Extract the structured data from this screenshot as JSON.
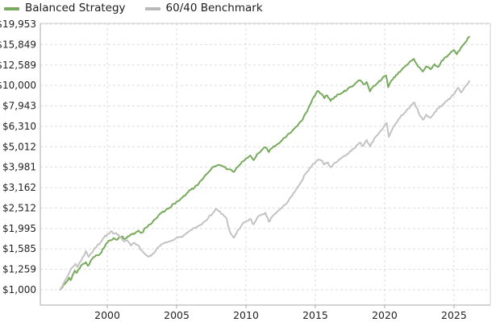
{
  "legend": {
    "items": [
      {
        "label": "Balanced Strategy",
        "color": "#77aa5c"
      },
      {
        "label": "60/40 Benchmark",
        "color": "#b9b9b9"
      }
    ]
  },
  "colors": {
    "balanced": "#77aa5c",
    "benchmark": "#c3c3c3",
    "grid": "#dddddd",
    "axis_main": "#a9a9a9",
    "axis_light": "#cfcfcf",
    "tick_text": "#222222"
  },
  "chart_data": {
    "type": "line",
    "title": "",
    "xlabel": "",
    "ylabel": "",
    "grid": true,
    "legend_position": "top-left",
    "y_scale": "log",
    "x_range": [
      1995.17,
      2027.62
    ],
    "y_log_range": [
      2.925,
      4.304
    ],
    "x_axis": {
      "ticks": [
        2000,
        2005,
        2010,
        2015,
        2020,
        2025
      ],
      "tick_labels": [
        "2000",
        "2005",
        "2010",
        "2015",
        "2020",
        "2025"
      ]
    },
    "y_axis": {
      "tick_values": [
        19953,
        15849,
        12589,
        10000,
        7943,
        6310,
        5012,
        3981,
        3162,
        2512,
        1995,
        1585,
        1259,
        1000
      ],
      "tick_labels": [
        "$19,953",
        "$15,849",
        "$12,589",
        "$10,000",
        "$7,943",
        "$6,310",
        "$5,012",
        "$3,981",
        "$3,162",
        "$2,512",
        "$1,995",
        "$1,585",
        "$1,259",
        "$1,000"
      ]
    },
    "series": [
      {
        "name": "Balanced Strategy",
        "color": "#77aa5c",
        "points": [
          [
            1996.6,
            1000
          ],
          [
            1996.75,
            1025
          ],
          [
            1996.9,
            1060
          ],
          [
            1997.1,
            1100
          ],
          [
            1997.25,
            1145
          ],
          [
            1997.35,
            1115
          ],
          [
            1997.5,
            1185
          ],
          [
            1997.65,
            1240
          ],
          [
            1997.8,
            1210
          ],
          [
            1998.0,
            1270
          ],
          [
            1998.2,
            1330
          ],
          [
            1998.45,
            1365
          ],
          [
            1998.6,
            1310
          ],
          [
            1998.8,
            1385
          ],
          [
            1999.0,
            1445
          ],
          [
            1999.25,
            1475
          ],
          [
            1999.5,
            1505
          ],
          [
            1999.75,
            1600
          ],
          [
            2000.0,
            1700
          ],
          [
            2000.2,
            1745
          ],
          [
            2000.45,
            1790
          ],
          [
            2000.65,
            1755
          ],
          [
            2000.9,
            1800
          ],
          [
            2001.1,
            1825
          ],
          [
            2001.25,
            1770
          ],
          [
            2001.5,
            1830
          ],
          [
            2001.75,
            1865
          ],
          [
            2002.0,
            1895
          ],
          [
            2002.25,
            1950
          ],
          [
            2002.5,
            1900
          ],
          [
            2002.75,
            2010
          ],
          [
            2003.0,
            2080
          ],
          [
            2003.3,
            2165
          ],
          [
            2003.6,
            2260
          ],
          [
            2003.9,
            2380
          ],
          [
            2004.2,
            2450
          ],
          [
            2004.5,
            2520
          ],
          [
            2004.8,
            2640
          ],
          [
            2005.1,
            2720
          ],
          [
            2005.4,
            2820
          ],
          [
            2005.7,
            2950
          ],
          [
            2006.0,
            3080
          ],
          [
            2006.3,
            3180
          ],
          [
            2006.6,
            3310
          ],
          [
            2006.9,
            3500
          ],
          [
            2007.2,
            3700
          ],
          [
            2007.5,
            3900
          ],
          [
            2007.8,
            4020
          ],
          [
            2008.1,
            4080
          ],
          [
            2008.4,
            3990
          ],
          [
            2008.7,
            3890
          ],
          [
            2009.0,
            3820
          ],
          [
            2009.15,
            3780
          ],
          [
            2009.4,
            3990
          ],
          [
            2009.7,
            4230
          ],
          [
            2010.0,
            4400
          ],
          [
            2010.3,
            4540
          ],
          [
            2010.55,
            4310
          ],
          [
            2010.8,
            4620
          ],
          [
            2011.1,
            4800
          ],
          [
            2011.4,
            4980
          ],
          [
            2011.65,
            4720
          ],
          [
            2011.9,
            4950
          ],
          [
            2012.2,
            5120
          ],
          [
            2012.5,
            5320
          ],
          [
            2012.8,
            5560
          ],
          [
            2013.1,
            5820
          ],
          [
            2013.4,
            6080
          ],
          [
            2013.7,
            6330
          ],
          [
            2014.0,
            6700
          ],
          [
            2014.3,
            7300
          ],
          [
            2014.6,
            8000
          ],
          [
            2014.9,
            8800
          ],
          [
            2015.15,
            9400
          ],
          [
            2015.45,
            9100
          ],
          [
            2015.65,
            8650
          ],
          [
            2015.85,
            8950
          ],
          [
            2016.1,
            8400
          ],
          [
            2016.4,
            8800
          ],
          [
            2016.7,
            9050
          ],
          [
            2017.0,
            9250
          ],
          [
            2017.3,
            9550
          ],
          [
            2017.6,
            9850
          ],
          [
            2017.9,
            10250
          ],
          [
            2018.2,
            10600
          ],
          [
            2018.45,
            10150
          ],
          [
            2018.7,
            10400
          ],
          [
            2018.95,
            9350
          ],
          [
            2019.2,
            9950
          ],
          [
            2019.5,
            10300
          ],
          [
            2019.8,
            10750
          ],
          [
            2020.1,
            11200
          ],
          [
            2020.25,
            9800
          ],
          [
            2020.5,
            10600
          ],
          [
            2020.75,
            11000
          ],
          [
            2021.0,
            11600
          ],
          [
            2021.3,
            12100
          ],
          [
            2021.6,
            12600
          ],
          [
            2021.9,
            13200
          ],
          [
            2022.1,
            13500
          ],
          [
            2022.4,
            12400
          ],
          [
            2022.75,
            11700
          ],
          [
            2023.0,
            12400
          ],
          [
            2023.3,
            12000
          ],
          [
            2023.6,
            12700
          ],
          [
            2023.85,
            12300
          ],
          [
            2024.1,
            13200
          ],
          [
            2024.4,
            13800
          ],
          [
            2024.7,
            14300
          ],
          [
            2025.0,
            14900
          ],
          [
            2025.2,
            14200
          ],
          [
            2025.5,
            15300
          ],
          [
            2025.8,
            16200
          ],
          [
            2026.1,
            17300
          ]
        ]
      },
      {
        "name": "60/40 Benchmark",
        "color": "#c3c3c3",
        "points": [
          [
            1996.6,
            1000
          ],
          [
            1996.75,
            1040
          ],
          [
            1996.9,
            1090
          ],
          [
            1997.1,
            1150
          ],
          [
            1997.3,
            1230
          ],
          [
            1997.5,
            1290
          ],
          [
            1997.7,
            1340
          ],
          [
            1997.85,
            1290
          ],
          [
            1998.0,
            1360
          ],
          [
            1998.2,
            1430
          ],
          [
            1998.45,
            1545
          ],
          [
            1998.65,
            1450
          ],
          [
            1998.8,
            1500
          ],
          [
            1999.0,
            1560
          ],
          [
            1999.25,
            1635
          ],
          [
            1999.5,
            1700
          ],
          [
            1999.75,
            1800
          ],
          [
            2000.0,
            1870
          ],
          [
            2000.25,
            1930
          ],
          [
            2000.5,
            1885
          ],
          [
            2000.75,
            1855
          ],
          [
            2001.0,
            1805
          ],
          [
            2001.2,
            1725
          ],
          [
            2001.45,
            1745
          ],
          [
            2001.7,
            1645
          ],
          [
            2001.95,
            1700
          ],
          [
            2002.2,
            1655
          ],
          [
            2002.5,
            1555
          ],
          [
            2002.75,
            1485
          ],
          [
            2003.0,
            1450
          ],
          [
            2003.25,
            1495
          ],
          [
            2003.5,
            1560
          ],
          [
            2003.75,
            1630
          ],
          [
            2004.0,
            1680
          ],
          [
            2004.3,
            1705
          ],
          [
            2004.6,
            1735
          ],
          [
            2004.9,
            1780
          ],
          [
            2005.2,
            1805
          ],
          [
            2005.5,
            1845
          ],
          [
            2005.8,
            1905
          ],
          [
            2006.1,
            1965
          ],
          [
            2006.4,
            2010
          ],
          [
            2006.7,
            2075
          ],
          [
            2007.0,
            2155
          ],
          [
            2007.3,
            2260
          ],
          [
            2007.6,
            2370
          ],
          [
            2007.8,
            2480
          ],
          [
            2008.0,
            2430
          ],
          [
            2008.3,
            2350
          ],
          [
            2008.6,
            2240
          ],
          [
            2008.8,
            1960
          ],
          [
            2009.0,
            1850
          ],
          [
            2009.15,
            1800
          ],
          [
            2009.4,
            1955
          ],
          [
            2009.7,
            2080
          ],
          [
            2010.0,
            2160
          ],
          [
            2010.3,
            2225
          ],
          [
            2010.55,
            2090
          ],
          [
            2010.8,
            2250
          ],
          [
            2011.1,
            2320
          ],
          [
            2011.4,
            2385
          ],
          [
            2011.65,
            2150
          ],
          [
            2011.9,
            2285
          ],
          [
            2012.2,
            2385
          ],
          [
            2012.5,
            2490
          ],
          [
            2012.8,
            2605
          ],
          [
            2013.1,
            2760
          ],
          [
            2013.4,
            2960
          ],
          [
            2013.7,
            3160
          ],
          [
            2014.0,
            3400
          ],
          [
            2014.3,
            3700
          ],
          [
            2014.6,
            3950
          ],
          [
            2014.9,
            4150
          ],
          [
            2015.2,
            4330
          ],
          [
            2015.5,
            4280
          ],
          [
            2015.65,
            4100
          ],
          [
            2015.9,
            4200
          ],
          [
            2016.1,
            3980
          ],
          [
            2016.4,
            4180
          ],
          [
            2016.7,
            4330
          ],
          [
            2017.0,
            4480
          ],
          [
            2017.3,
            4620
          ],
          [
            2017.6,
            4780
          ],
          [
            2017.9,
            4980
          ],
          [
            2018.2,
            5250
          ],
          [
            2018.45,
            5050
          ],
          [
            2018.7,
            5420
          ],
          [
            2018.95,
            5020
          ],
          [
            2019.25,
            5500
          ],
          [
            2019.6,
            5850
          ],
          [
            2019.9,
            6200
          ],
          [
            2020.15,
            6550
          ],
          [
            2020.3,
            5600
          ],
          [
            2020.55,
            6100
          ],
          [
            2020.8,
            6500
          ],
          [
            2021.1,
            6950
          ],
          [
            2021.4,
            7300
          ],
          [
            2021.7,
            7700
          ],
          [
            2022.0,
            8100
          ],
          [
            2022.15,
            8250
          ],
          [
            2022.45,
            7350
          ],
          [
            2022.75,
            6800
          ],
          [
            2023.0,
            7200
          ],
          [
            2023.3,
            6950
          ],
          [
            2023.6,
            7400
          ],
          [
            2023.9,
            7750
          ],
          [
            2024.2,
            8100
          ],
          [
            2024.5,
            8400
          ],
          [
            2024.8,
            8800
          ],
          [
            2025.05,
            9150
          ],
          [
            2025.3,
            9750
          ],
          [
            2025.5,
            9250
          ],
          [
            2025.75,
            9750
          ],
          [
            2026.1,
            10500
          ]
        ]
      }
    ]
  }
}
